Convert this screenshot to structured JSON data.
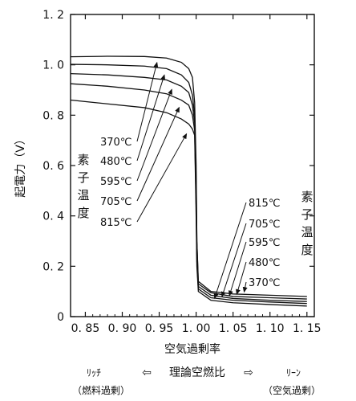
{
  "chart_data": {
    "type": "line",
    "xlabel": "空気過剰率",
    "ylabel": "起電力（V）",
    "xlim": [
      0.83,
      1.16
    ],
    "ylim": [
      0.0,
      1.2
    ],
    "x_ticks": [
      0.85,
      0.9,
      0.95,
      1.0,
      1.05,
      1.1,
      1.15
    ],
    "x_tick_labels": [
      "0. 85",
      "0. 90",
      "0. 95",
      "1. 00",
      "1. 05",
      "1. 10",
      "1. 15"
    ],
    "y_ticks": [
      0.0,
      0.2,
      0.4,
      0.6,
      0.8,
      1.0,
      1.2
    ],
    "y_tick_labels": [
      "0",
      "0. 2",
      "0. 4",
      "0. 6",
      "0. 8",
      "1. 0",
      "1. 2"
    ],
    "grid": false,
    "series": [
      {
        "name": "370℃",
        "points": [
          [
            0.83,
            1.032
          ],
          [
            0.88,
            1.034
          ],
          [
            0.93,
            1.033
          ],
          [
            0.96,
            1.027
          ],
          [
            0.98,
            1.01
          ],
          [
            0.99,
            0.985
          ],
          [
            0.995,
            0.95
          ],
          [
            0.998,
            0.85
          ],
          [
            1.0,
            0.6
          ],
          [
            1.001,
            0.3
          ],
          [
            1.003,
            0.14
          ],
          [
            1.02,
            0.1
          ],
          [
            1.05,
            0.09
          ],
          [
            1.1,
            0.085
          ],
          [
            1.15,
            0.08
          ]
        ]
      },
      {
        "name": "480℃",
        "points": [
          [
            0.83,
            1.002
          ],
          [
            0.88,
            1.0
          ],
          [
            0.93,
            0.995
          ],
          [
            0.96,
            0.985
          ],
          [
            0.98,
            0.96
          ],
          [
            0.99,
            0.93
          ],
          [
            0.995,
            0.88
          ],
          [
            0.998,
            0.8
          ],
          [
            1.0,
            0.55
          ],
          [
            1.001,
            0.3
          ],
          [
            1.003,
            0.13
          ],
          [
            1.02,
            0.095
          ],
          [
            1.05,
            0.08
          ],
          [
            1.1,
            0.075
          ],
          [
            1.15,
            0.07
          ]
        ]
      },
      {
        "name": "595℃",
        "points": [
          [
            0.83,
            0.965
          ],
          [
            0.88,
            0.96
          ],
          [
            0.93,
            0.95
          ],
          [
            0.96,
            0.94
          ],
          [
            0.98,
            0.915
          ],
          [
            0.99,
            0.89
          ],
          [
            0.995,
            0.84
          ],
          [
            0.998,
            0.77
          ],
          [
            1.0,
            0.5
          ],
          [
            1.001,
            0.25
          ],
          [
            1.003,
            0.12
          ],
          [
            1.02,
            0.085
          ],
          [
            1.05,
            0.072
          ],
          [
            1.1,
            0.065
          ],
          [
            1.15,
            0.06
          ]
        ]
      },
      {
        "name": "705℃",
        "points": [
          [
            0.83,
            0.925
          ],
          [
            0.88,
            0.915
          ],
          [
            0.93,
            0.9
          ],
          [
            0.96,
            0.885
          ],
          [
            0.98,
            0.86
          ],
          [
            0.99,
            0.84
          ],
          [
            0.995,
            0.8
          ],
          [
            0.998,
            0.74
          ],
          [
            1.0,
            0.45
          ],
          [
            1.001,
            0.22
          ],
          [
            1.003,
            0.11
          ],
          [
            1.02,
            0.075
          ],
          [
            1.05,
            0.065
          ],
          [
            1.1,
            0.058
          ],
          [
            1.15,
            0.052
          ]
        ]
      },
      {
        "name": "815℃",
        "points": [
          [
            0.83,
            0.86
          ],
          [
            0.88,
            0.845
          ],
          [
            0.93,
            0.83
          ],
          [
            0.96,
            0.81
          ],
          [
            0.98,
            0.785
          ],
          [
            0.99,
            0.765
          ],
          [
            0.995,
            0.745
          ],
          [
            0.998,
            0.72
          ],
          [
            1.0,
            0.4
          ],
          [
            1.001,
            0.2
          ],
          [
            1.003,
            0.1
          ],
          [
            1.02,
            0.065
          ],
          [
            1.05,
            0.055
          ],
          [
            1.1,
            0.048
          ],
          [
            1.15,
            0.042
          ]
        ]
      }
    ],
    "annotations_left": {
      "temps": [
        "370℃",
        "480℃",
        "595℃",
        "705℃",
        "815℃"
      ],
      "label": "素子温度"
    },
    "annotations_right": {
      "temps": [
        "815℃",
        "705℃",
        "595℃",
        "480℃",
        "370℃"
      ],
      "label": "素子温度"
    },
    "bottom_note": {
      "rich": "ﾘｯﾁ",
      "rich_sub": "（燃料過剰）",
      "left_arrow": "⇦",
      "center": "理論空燃比",
      "right_arrow": "⇨",
      "lean": "ﾘｰﾝ",
      "lean_sub": "（空気過剰）"
    }
  }
}
